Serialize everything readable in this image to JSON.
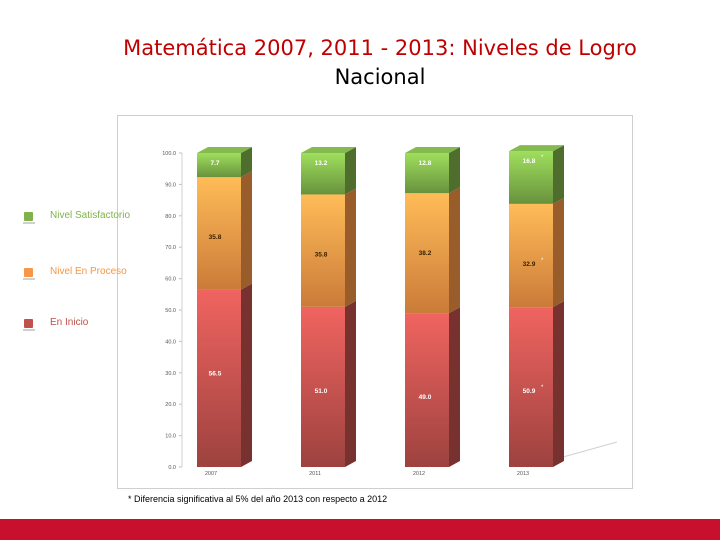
{
  "title": {
    "line1": "Matemática 2007, 2011 - 2013: Niveles de Logro",
    "line2": "Nacional"
  },
  "legend": [
    {
      "label": "Nivel Satisfactorio",
      "color": "#7fb24a"
    },
    {
      "label": "Nivel En Proceso",
      "color": "#f79646"
    },
    {
      "label": "En Inicio",
      "color": "#c0504d"
    }
  ],
  "footnote": "* Diferencia significativa al 5% del año 2013 con respecto a 2012",
  "chart_data": {
    "type": "bar",
    "stacked": true,
    "categories": [
      "2007",
      "2011",
      "2012",
      "2013"
    ],
    "series": [
      {
        "name": "En Inicio",
        "values": [
          56.5,
          51.0,
          49.0,
          50.9
        ],
        "labels": [
          "56.5",
          "51.0",
          "49.0",
          "50.9"
        ],
        "color": "#c0504d"
      },
      {
        "name": "Nivel En Proceso",
        "values": [
          35.8,
          35.8,
          38.2,
          32.9
        ],
        "labels": [
          "35.8",
          "35.8",
          "38.2",
          "32.9"
        ],
        "color": "#f79646"
      },
      {
        "name": "Nivel Satisfactorio",
        "values": [
          7.7,
          13.2,
          12.8,
          16.8
        ],
        "labels": [
          "7.7",
          "13.2",
          "12.8",
          "16.8"
        ],
        "color": "#7fb24a"
      }
    ],
    "significance_marks": [
      {
        "category": "2013",
        "series": "Nivel Satisfactorio",
        "mark": "*"
      },
      {
        "category": "2013",
        "series": "Nivel En Proceso",
        "mark": "*"
      },
      {
        "category": "2013",
        "series": "En Inicio",
        "mark": "*"
      }
    ],
    "ylim": [
      0,
      100
    ],
    "yticks": [
      0,
      10,
      20,
      30,
      40,
      50,
      60,
      70,
      80,
      90,
      100
    ],
    "ytick_labels": [
      "0.0",
      "10.0",
      "20.0",
      "30.0",
      "40.0",
      "50.0",
      "60.0",
      "70.0",
      "80.0",
      "90.0",
      "100.0"
    ],
    "legend_position": "left",
    "grid": false
  }
}
